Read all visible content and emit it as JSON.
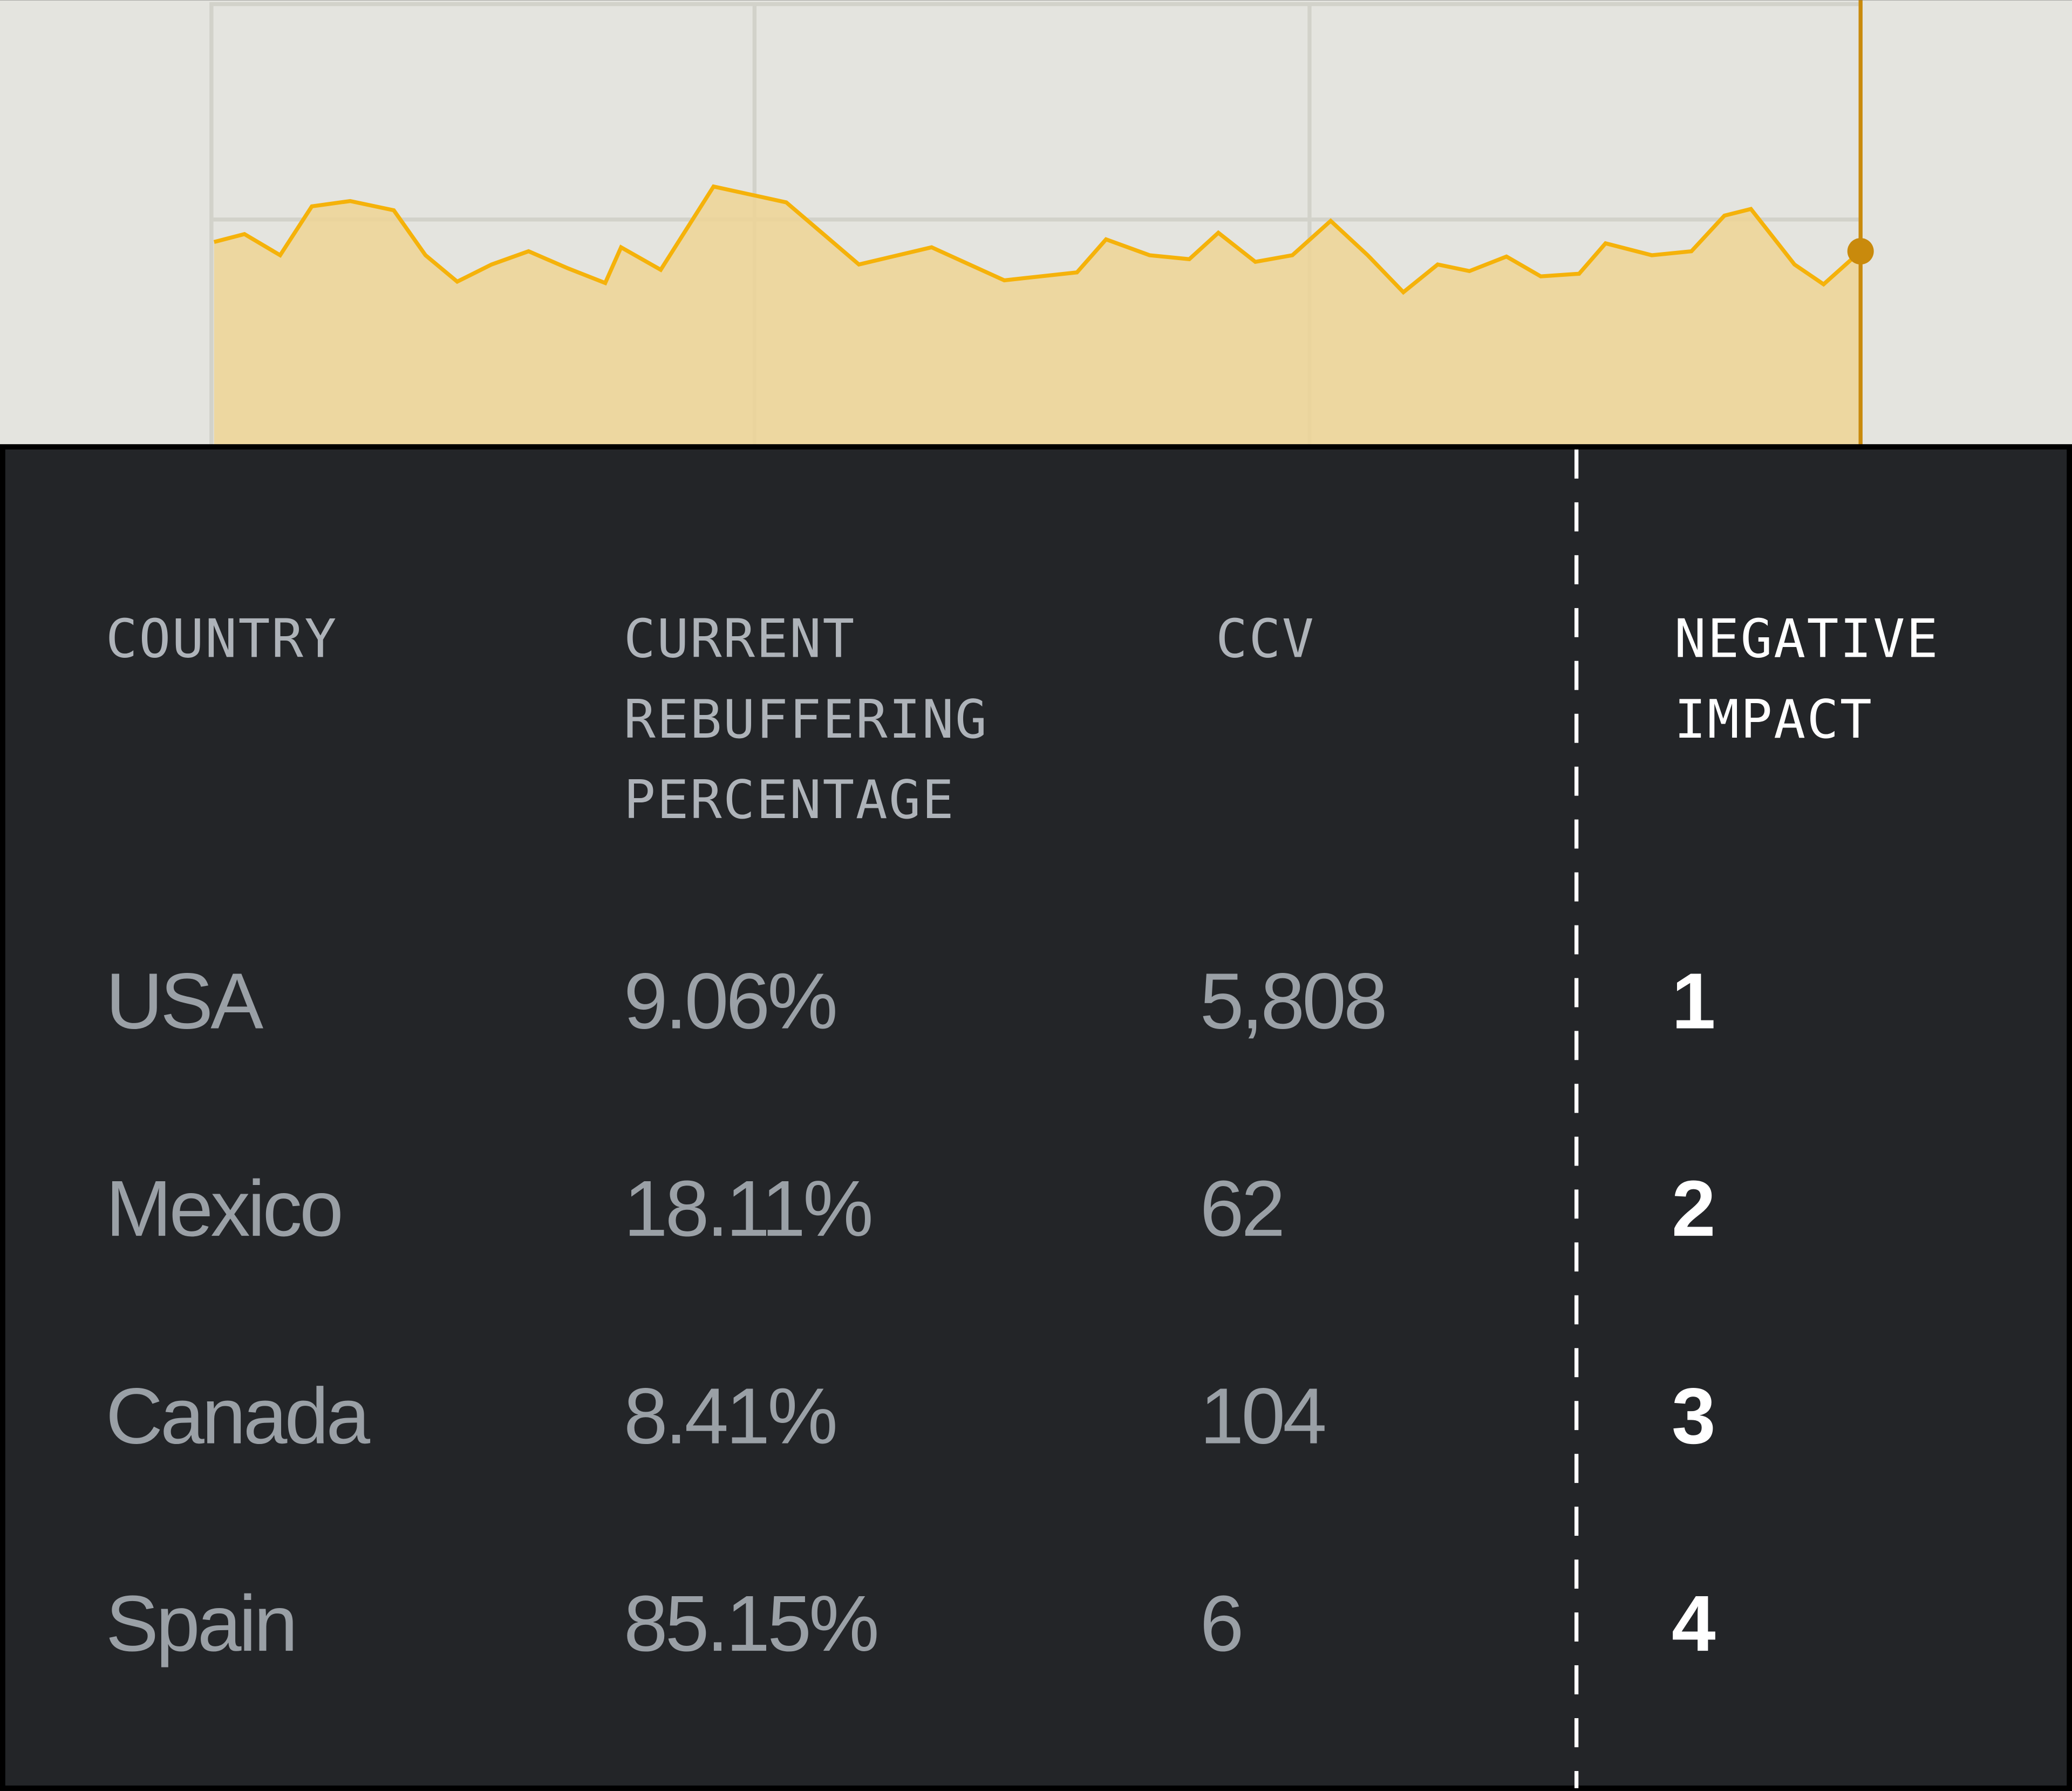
{
  "table": {
    "headers": [
      [
        "COUNTRY"
      ],
      [
        "CURRENT",
        "REBUFFERING",
        "PERCENTAGE"
      ],
      [
        "CCV"
      ],
      [
        "NEGATIVE",
        "IMPACT"
      ]
    ],
    "rows": [
      [
        "USA",
        "9.06%",
        "5,808",
        "1"
      ],
      [
        "Mexico",
        "18.11%",
        "62",
        "2"
      ],
      [
        "Canada",
        "8.41%",
        "104",
        "3"
      ],
      [
        "Spain",
        "85.15%",
        "6",
        "4"
      ]
    ]
  }
}
